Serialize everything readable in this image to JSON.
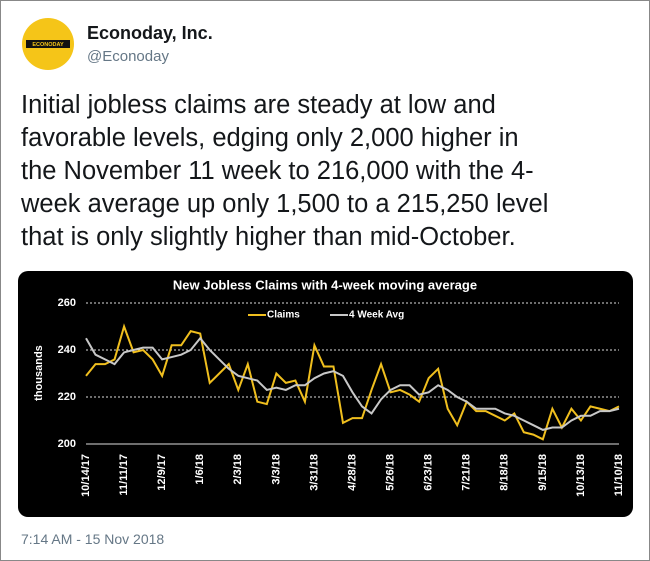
{
  "tweet": {
    "name": "Econoday, Inc.",
    "handle": "@Econoday",
    "avatar_text": "ECONODAY",
    "text_lines": [
      "Initial jobless claims are steady at low and",
      "favorable levels, edging only 2,000 higher in",
      "the November 11 week to 216,000 with the 4-",
      "week average up only 1,500 to a 215,250 level",
      "that is only slightly higher than mid-October."
    ],
    "timestamp": "7:14 AM - 15 Nov 2018"
  },
  "chart_data": {
    "type": "line",
    "title": "New Jobless Claims with 4-week moving average",
    "y_label": "thousands",
    "categories": [
      "10/14/17",
      null,
      null,
      null,
      "11/11/17",
      null,
      null,
      null,
      "12/9/17",
      null,
      null,
      null,
      "1/6/18",
      null,
      null,
      null,
      "2/3/18",
      null,
      null,
      null,
      "3/3/18",
      null,
      null,
      null,
      "3/31/18",
      null,
      null,
      null,
      "4/28/18",
      null,
      null,
      null,
      "5/26/18",
      null,
      null,
      null,
      "6/23/18",
      null,
      null,
      null,
      "7/21/18",
      null,
      null,
      null,
      "8/18/18",
      null,
      null,
      null,
      "9/15/18",
      null,
      null,
      null,
      "10/13/18",
      null,
      null,
      null,
      "11/10/18"
    ],
    "series": [
      {
        "name": "Claims",
        "color": "#f0bf1e",
        "values": [
          229,
          234,
          234,
          236,
          250,
          239,
          240,
          236,
          229,
          242,
          242,
          248,
          247,
          226,
          230,
          234,
          223,
          234,
          218,
          217,
          230,
          226,
          227,
          218,
          242,
          233,
          233,
          209,
          211,
          211,
          223,
          234,
          222,
          223,
          221,
          218,
          228,
          232,
          215,
          208,
          218,
          214,
          214,
          212,
          210,
          213,
          205,
          204,
          202,
          215,
          207,
          215,
          210,
          216,
          215,
          214,
          216
        ]
      },
      {
        "name": "4 Week Avg",
        "color": "#c8c8c8",
        "values": [
          245,
          238,
          236,
          234,
          239,
          240,
          241,
          241,
          236,
          237,
          238,
          240,
          245,
          240,
          236,
          232,
          229,
          228,
          227,
          223,
          224,
          223,
          225,
          225,
          228,
          230,
          231,
          229,
          222,
          216,
          213,
          219,
          223,
          225,
          225,
          221,
          222,
          225,
          223,
          220,
          218,
          215,
          215,
          215,
          213,
          212,
          210,
          208,
          206,
          207,
          207,
          210,
          212,
          212,
          214,
          214,
          215
        ]
      }
    ],
    "ylim": [
      200,
      260
    ],
    "yticks": [
      200,
      220,
      240,
      260
    ],
    "grid": true,
    "legend": "top"
  }
}
